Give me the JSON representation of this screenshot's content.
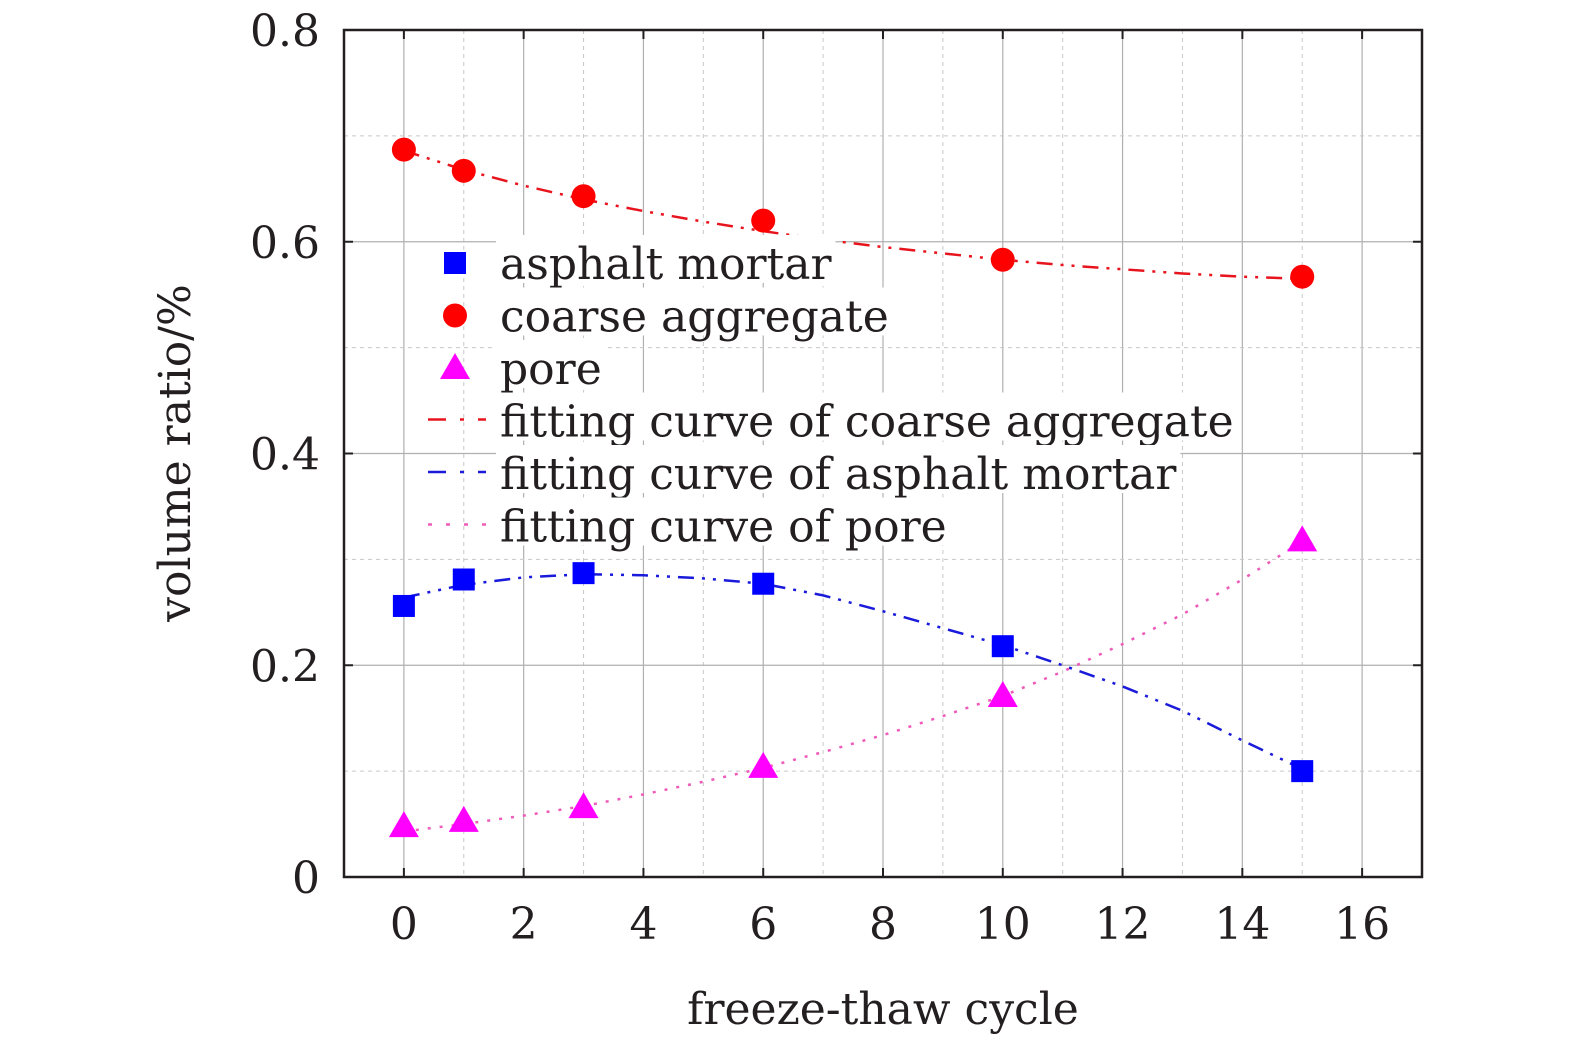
{
  "chart_data": {
    "type": "scatter",
    "xlabel": "freeze-thaw cycle",
    "ylabel": "volume ratio/%",
    "xlim": [
      -1,
      17
    ],
    "ylim": [
      0,
      0.8
    ],
    "x_ticks": [
      0,
      2,
      4,
      6,
      8,
      10,
      12,
      14,
      16
    ],
    "y_ticks": [
      0,
      0.2,
      0.4,
      0.6,
      0.8
    ],
    "x_tick_labels": [
      "0",
      "2",
      "4",
      "6",
      "8",
      "10",
      "12",
      "14",
      "16"
    ],
    "y_tick_labels": [
      "0",
      "0.2",
      "0.4",
      "0.6",
      "0.8"
    ],
    "grid": true,
    "legend_position": "center-left",
    "series": [
      {
        "name": "asphalt mortar",
        "marker": "square",
        "color": "#0000ff",
        "x": [
          0,
          1,
          3,
          6,
          10,
          15
        ],
        "values": [
          0.256,
          0.281,
          0.287,
          0.277,
          0.218,
          0.1
        ]
      },
      {
        "name": "coarse aggregate",
        "marker": "circle",
        "color": "#ff0000",
        "x": [
          0,
          1,
          3,
          6,
          10,
          15
        ],
        "values": [
          0.687,
          0.667,
          0.643,
          0.62,
          0.583,
          0.567
        ]
      },
      {
        "name": "pore",
        "marker": "triangle",
        "color": "#ff00ff",
        "x": [
          0,
          1,
          3,
          6,
          10,
          15
        ],
        "values": [
          0.048,
          0.053,
          0.066,
          0.104,
          0.171,
          0.318
        ]
      }
    ],
    "fit_curves": [
      {
        "name": "fitting curve of coarse aggregate",
        "color": "#e8141d",
        "style": "dash-dot-dot",
        "x": [
          0,
          1,
          2,
          3,
          4,
          5,
          6,
          7,
          8,
          9,
          10,
          11,
          12,
          13,
          14,
          15
        ],
        "values": [
          0.686,
          0.668,
          0.653,
          0.64,
          0.629,
          0.619,
          0.61,
          0.602,
          0.595,
          0.589,
          0.583,
          0.578,
          0.574,
          0.57,
          0.567,
          0.565
        ]
      },
      {
        "name": "fitting curve of asphalt mortar",
        "color": "#1a1adb",
        "style": "dash-dot-dot",
        "x": [
          0,
          1,
          2,
          3,
          4,
          5,
          6,
          7,
          8,
          9,
          10,
          11,
          12,
          13,
          14,
          15
        ],
        "values": [
          0.264,
          0.276,
          0.283,
          0.286,
          0.285,
          0.282,
          0.277,
          0.266,
          0.251,
          0.235,
          0.219,
          0.2,
          0.18,
          0.157,
          0.129,
          0.102
        ]
      },
      {
        "name": "fitting curve of pore",
        "color": "#ee5bb9",
        "style": "dotted",
        "x": [
          0,
          1,
          2,
          3,
          4,
          5,
          6,
          7,
          8,
          9,
          10,
          11,
          12,
          13,
          14,
          15
        ],
        "values": [
          0.043,
          0.05,
          0.058,
          0.067,
          0.078,
          0.09,
          0.103,
          0.118,
          0.134,
          0.152,
          0.171,
          0.194,
          0.22,
          0.248,
          0.281,
          0.317
        ]
      }
    ]
  }
}
